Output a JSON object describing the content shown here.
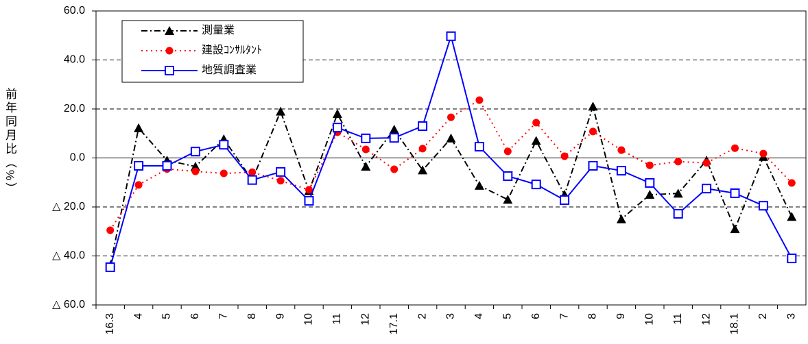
{
  "chart_data": {
    "type": "line",
    "y_label": "前年同月比（%）",
    "categories": [
      "16.3",
      "4",
      "5",
      "6",
      "7",
      "8",
      "9",
      "10",
      "11",
      "12",
      "17.1",
      "2",
      "3",
      "4",
      "5",
      "6",
      "7",
      "8",
      "9",
      "10",
      "11",
      "12",
      "18.1",
      "2",
      "3"
    ],
    "series": [
      {
        "name": "測量業",
        "color": "#000000",
        "values": [
          -44,
          12.2,
          -1,
          -3.5,
          7.7,
          -9,
          19,
          -13.5,
          18,
          -3.5,
          11.6,
          -5,
          8,
          -11.3,
          -17,
          7,
          -15,
          21,
          -25,
          -15,
          -14.5,
          -1,
          -29,
          0.5,
          -24
        ]
      },
      {
        "name": "建設ｺﾝｻﾙﾀﾝﾄ",
        "color": "#ff0000",
        "values": [
          -29.5,
          -11,
          -4.5,
          -5.5,
          -6.3,
          -5.8,
          -9.3,
          -13,
          10.5,
          3.5,
          -4.6,
          3.8,
          16.6,
          23.6,
          2.7,
          14.4,
          0.7,
          10.8,
          3.2,
          -3,
          -1.5,
          -2,
          4,
          1.8,
          -10.2
        ]
      },
      {
        "name": "地質調査業",
        "color": "#0000ff",
        "values": [
          -44.6,
          -3.2,
          -3.2,
          2.6,
          5.4,
          -9,
          -5.7,
          -17.5,
          12.4,
          8,
          8.2,
          13,
          49.7,
          4.6,
          -7.4,
          -10.8,
          -17.2,
          -3.2,
          -5.2,
          -10.2,
          -22.8,
          -12.5,
          -14.4,
          -19.5,
          -41
        ]
      }
    ],
    "ylim": [
      -60,
      60
    ],
    "yticks": [
      {
        "value": -60,
        "label": "△ 60.0"
      },
      {
        "value": -40,
        "label": "△ 40.0"
      },
      {
        "value": -20,
        "label": "△ 20.0"
      },
      {
        "value": 0,
        "label": "0.0"
      },
      {
        "value": 20,
        "label": "20.0"
      },
      {
        "value": 40,
        "label": "40.0"
      },
      {
        "value": 60,
        "label": "60.0"
      }
    ],
    "grid": true
  }
}
